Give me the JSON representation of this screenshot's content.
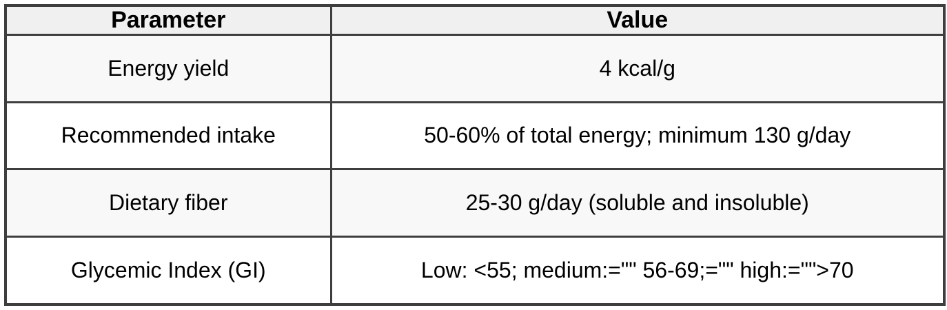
{
  "table": {
    "columns": [
      {
        "label": "Parameter"
      },
      {
        "label": "Value"
      }
    ],
    "rows": [
      {
        "parameter": "Energy yield",
        "value": "4 kcal/g"
      },
      {
        "parameter": "Recommended intake",
        "value": "50-60% of total energy; minimum 130 g/day"
      },
      {
        "parameter": "Dietary fiber",
        "value": "25-30 g/day (soluble and insoluble)"
      },
      {
        "parameter": "Glycemic Index (GI)",
        "value": "Low: <55; medium:=\"\" 56-69;=\"\" high:=\"\">70"
      }
    ],
    "colors": {
      "border": "#3e3e3e",
      "header_background": "#f0f0f0",
      "stripe_background": "#f8f8f8",
      "row_background": "#ffffff",
      "text": "#000000"
    }
  }
}
